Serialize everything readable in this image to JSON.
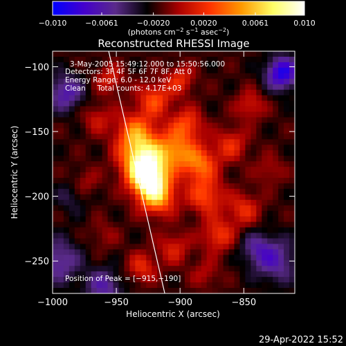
{
  "chart_data": {
    "type": "heatmap",
    "title": "Reconstructed RHESSI Image",
    "xlabel": "Heliocentric X (arcsec)",
    "ylabel": "Heliocentric Y (arcsec)",
    "xlim": [
      -1000,
      -810
    ],
    "ylim": [
      -275,
      -88
    ],
    "x_ticks": [
      "−1000",
      "−950",
      "−900",
      "−850"
    ],
    "x_tick_values": [
      -1000,
      -950,
      -900,
      -850
    ],
    "y_ticks": [
      "−100",
      "−150",
      "−200",
      "−250"
    ],
    "y_tick_values": [
      -100,
      -150,
      -200,
      -250
    ],
    "colorbar": {
      "min": -0.01,
      "max": 0.01,
      "tick_labels": [
        "−0.010",
        "−0.0061",
        "−0.0020",
        "0.0020",
        "0.0061",
        "0.010"
      ],
      "tick_values": [
        -0.01,
        -0.0061,
        -0.002,
        0.002,
        0.0061,
        0.01
      ],
      "unit_prefix": "(photons cm",
      "unit_sup1": "−2",
      "unit_mid": " s",
      "unit_sup2": "−1",
      "unit_mid2": " asec",
      "unit_sup3": "−2",
      "unit_suffix": ")",
      "colormap": [
        "#0000ff",
        "#4400cc",
        "#5a2a8a",
        "#000000",
        "#aa0000",
        "#ff3300",
        "#ff9900",
        "#ffff66",
        "#ffffff"
      ]
    },
    "info_lines": [
      "3-May-2005 15:49:12.000 to 15:50:56.000",
      "Detectors: 3F 4F 5F 6F 7F 8F, Att 0",
      "Energy Range: 6.0 - 12.0 keV",
      "Clean     Total counts: 4.17E+03"
    ],
    "peak_label": "Position of Peak = [−915,−190]",
    "peak": [
      -915,
      -190
    ],
    "limb": [
      [
        -956,
        -88
      ],
      [
        -912,
        -275
      ]
    ],
    "blobs": [
      {
        "x": -925,
        "y": -185,
        "v": 0.01,
        "s": 10
      },
      {
        "x": -930,
        "y": -170,
        "v": 0.008,
        "s": 12
      },
      {
        "x": -918,
        "y": -200,
        "v": 0.007,
        "s": 10
      },
      {
        "x": -935,
        "y": -150,
        "v": 0.005,
        "s": 11
      },
      {
        "x": -920,
        "y": -125,
        "v": 0.0045,
        "s": 9
      },
      {
        "x": -905,
        "y": -165,
        "v": 0.0055,
        "s": 10
      },
      {
        "x": -895,
        "y": -145,
        "v": 0.0045,
        "s": 9
      },
      {
        "x": -885,
        "y": -175,
        "v": 0.0055,
        "s": 10
      },
      {
        "x": -880,
        "y": -200,
        "v": 0.0045,
        "s": 10
      },
      {
        "x": -870,
        "y": -230,
        "v": 0.004,
        "s": 9
      },
      {
        "x": -860,
        "y": -160,
        "v": 0.0035,
        "s": 9
      },
      {
        "x": -845,
        "y": -130,
        "v": 0.003,
        "s": 8
      },
      {
        "x": -850,
        "y": -210,
        "v": 0.0035,
        "s": 9
      },
      {
        "x": -905,
        "y": -240,
        "v": 0.003,
        "s": 9
      },
      {
        "x": -930,
        "y": -255,
        "v": 0.0035,
        "s": 8
      },
      {
        "x": -965,
        "y": -140,
        "v": 0.0025,
        "s": 8
      },
      {
        "x": -975,
        "y": -190,
        "v": 0.002,
        "s": 8
      },
      {
        "x": -960,
        "y": -230,
        "v": 0.0015,
        "s": 8
      },
      {
        "x": -955,
        "y": -110,
        "v": 0.003,
        "s": 8
      },
      {
        "x": -900,
        "y": -110,
        "v": 0.0035,
        "s": 8
      },
      {
        "x": -880,
        "y": -260,
        "v": 0.002,
        "s": 8
      },
      {
        "x": -830,
        "y": -180,
        "v": 0.002,
        "s": 8
      },
      {
        "x": -990,
        "y": -120,
        "v": -0.0045,
        "s": 10
      },
      {
        "x": -995,
        "y": -250,
        "v": -0.004,
        "s": 12
      },
      {
        "x": -820,
        "y": -105,
        "v": -0.007,
        "s": 9
      },
      {
        "x": -825,
        "y": -250,
        "v": -0.004,
        "s": 12
      },
      {
        "x": -960,
        "y": -270,
        "v": -0.004,
        "s": 10
      },
      {
        "x": -985,
        "y": -200,
        "v": -0.002,
        "s": 9
      },
      {
        "x": -840,
        "y": -240,
        "v": -0.003,
        "s": 9
      }
    ]
  },
  "footer": {
    "timestamp": "29-Apr-2022 15:52"
  }
}
